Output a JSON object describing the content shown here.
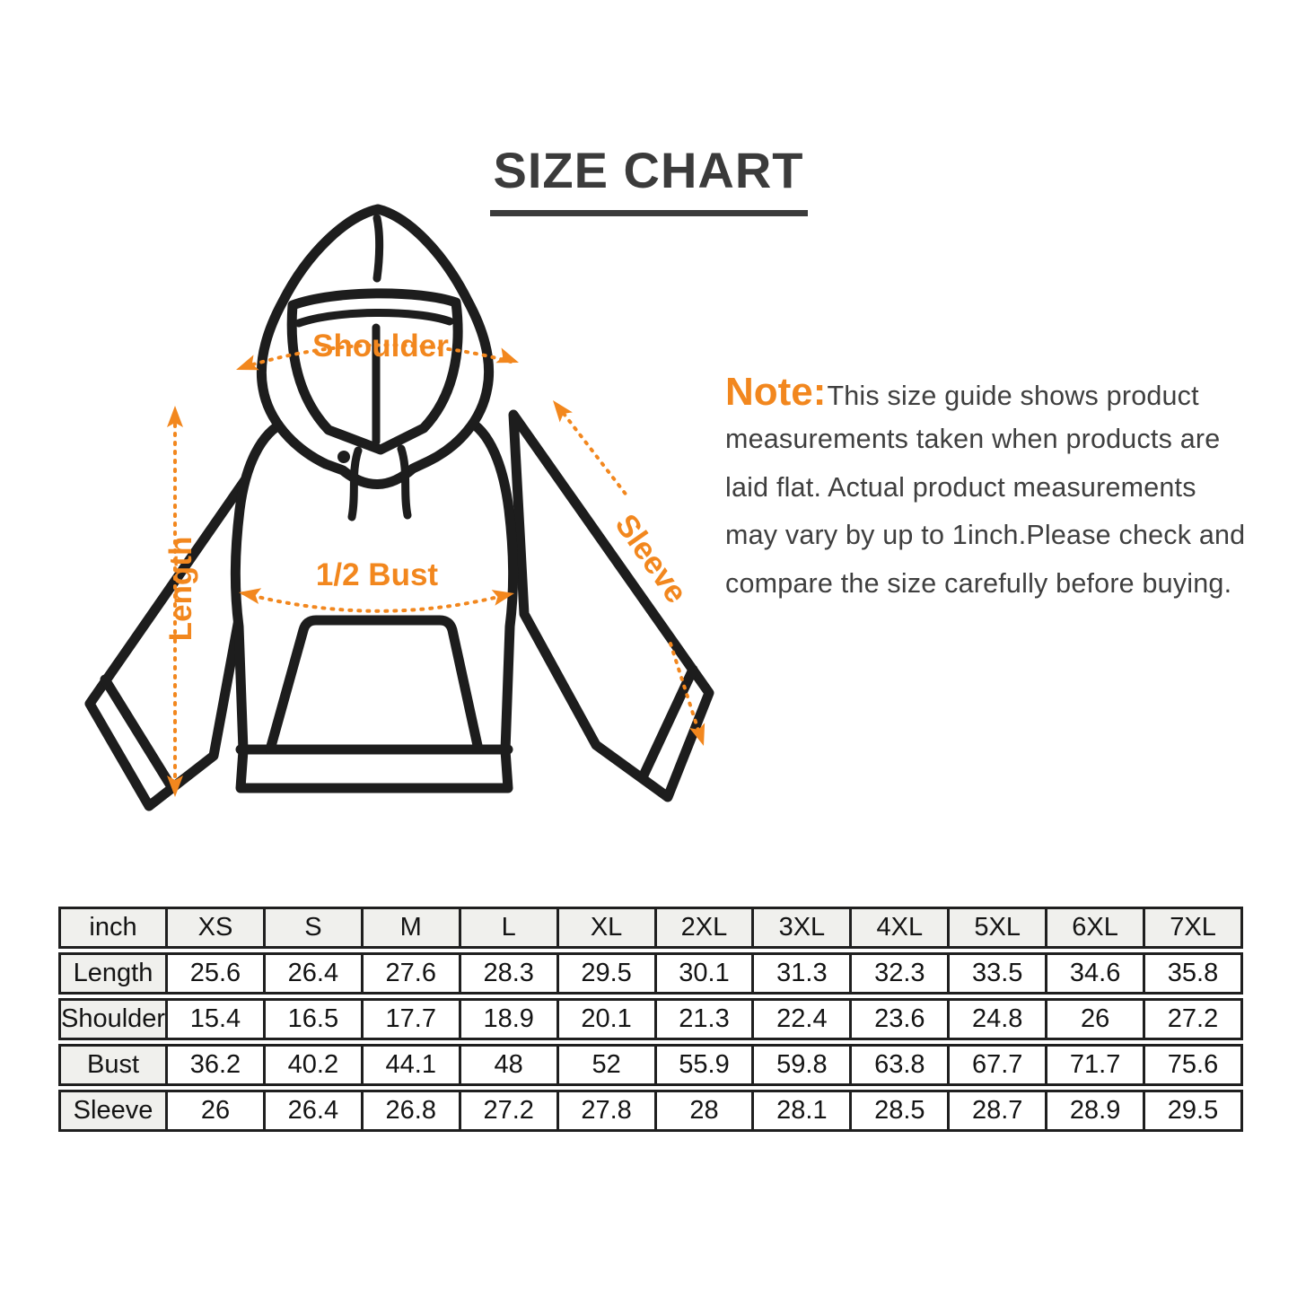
{
  "page": {
    "title": "SIZE CHART"
  },
  "note": {
    "label": "Note:",
    "lines": [
      "This size guide shows product",
      "measurements taken when products are",
      "laid flat. Actual product measurements",
      "may vary by up to 1inch.Please check and",
      "compare the size carefully before buying."
    ]
  },
  "diagram": {
    "labels": {
      "shoulder": "Shoulder",
      "length": "Length",
      "bust": "1/2 Bust",
      "sleeve": "Sleeve"
    },
    "accent_color": "#F2871E",
    "line_color": "#1D1D1D"
  },
  "table": {
    "unit_header": "inch",
    "size_headers": [
      "XS",
      "S",
      "M",
      "L",
      "XL",
      "2XL",
      "3XL",
      "4XL",
      "5XL",
      "6XL",
      "7XL"
    ],
    "rows": [
      {
        "label": "Length",
        "values": [
          25.6,
          26.4,
          27.6,
          28.3,
          29.5,
          30.1,
          31.3,
          32.3,
          33.5,
          34.6,
          35.8
        ]
      },
      {
        "label": "Shoulder",
        "values": [
          15.4,
          16.5,
          17.7,
          18.9,
          20.1,
          21.3,
          22.4,
          23.6,
          24.8,
          26,
          27.2
        ]
      },
      {
        "label": "Bust",
        "values": [
          36.2,
          40.2,
          44.1,
          48,
          52,
          55.9,
          59.8,
          63.8,
          67.7,
          71.7,
          75.6
        ]
      },
      {
        "label": "Sleeve",
        "values": [
          26,
          26.4,
          26.8,
          27.2,
          27.8,
          28,
          28.1,
          28.5,
          28.7,
          28.9,
          29.5
        ]
      }
    ]
  }
}
